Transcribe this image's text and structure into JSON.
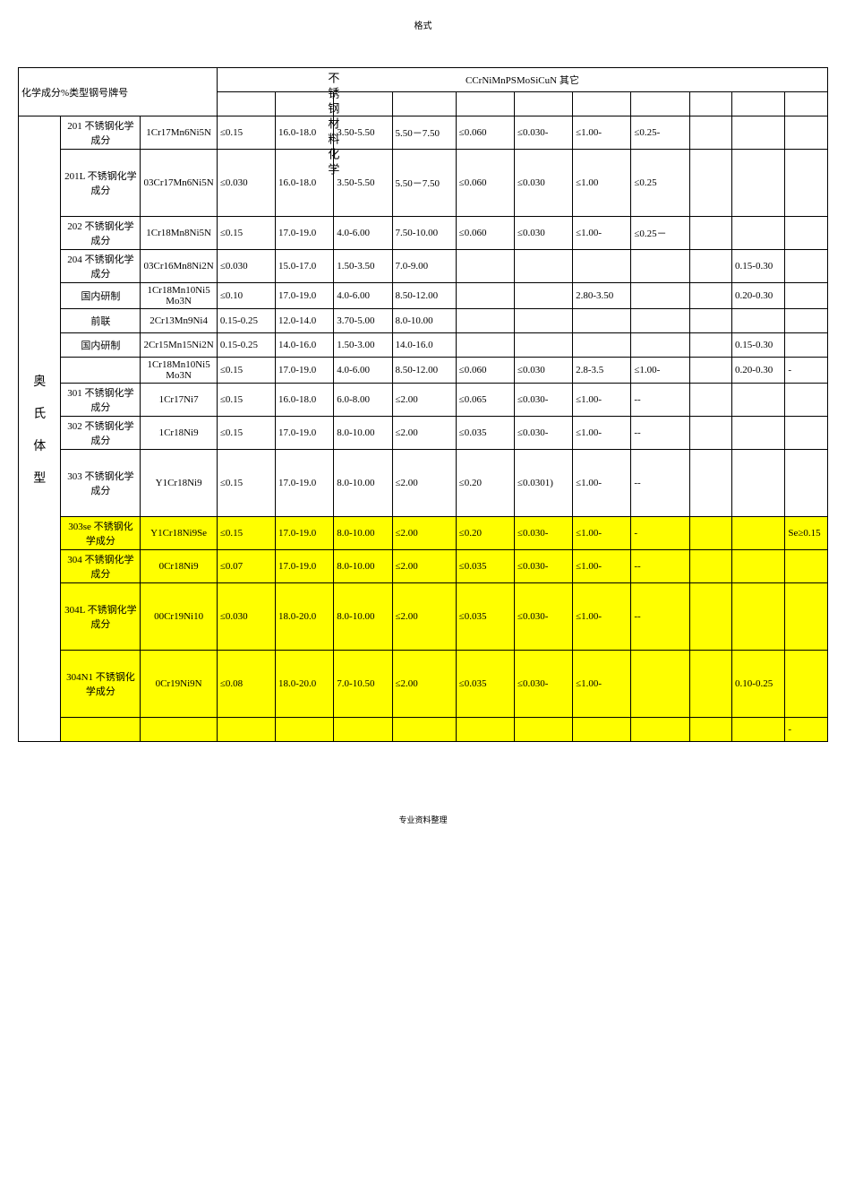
{
  "top_label": "格式",
  "vertical_title": "不锈钢材料化学",
  "footer": "专业资料整理",
  "header": {
    "row_label": "化学成分%类型钢号牌号",
    "cols_joined": "CCrNiMnPSMoSiCuN 其它"
  },
  "category": "奥氏体型",
  "colors": {
    "highlight": "#ffff00",
    "border": "#000000",
    "bg": "#ffffff"
  },
  "rows": [
    {
      "type": "201 不锈钢化学成分",
      "grade": "1Cr17Mn6Ni5N",
      "C": "≤0.15",
      "Cr": "16.0-18.0",
      "Ni": "3.50-5.50",
      "Mn": "5.50－7.50",
      "P": "≤0.060",
      "S": "≤0.030-",
      "Mo": "≤1.00-",
      "Si": "≤0.25-",
      "Cu": "",
      "N": "",
      "Other": "",
      "tall": false,
      "hl": false
    },
    {
      "type": "201L 不锈钢化学成分",
      "grade": "03Cr17Mn6Ni5N",
      "C": "≤0.030",
      "Cr": "16.0-18.0",
      "Ni": "3.50-5.50",
      "Mn": "5.50－7.50",
      "P": "≤0.060",
      "S": "≤0.030",
      "Mo": "≤1.00",
      "Si": "≤0.25",
      "Cu": "",
      "N": "",
      "Other": "",
      "tall": true,
      "hl": false
    },
    {
      "type": "202 不锈钢化学成分",
      "grade": "1Cr18Mn8Ni5N",
      "C": "≤0.15",
      "Cr": "17.0-19.0",
      "Ni": "4.0-6.00",
      "Mn": "7.50-10.00",
      "P": "≤0.060",
      "S": "≤0.030",
      "Mo": "≤1.00-",
      "Si": "≤0.25－",
      "Cu": "",
      "N": "",
      "Other": "",
      "tall": false,
      "hl": false
    },
    {
      "type": "204 不锈钢化学成分",
      "grade": "03Cr16Mn8Ni2N",
      "C": "≤0.030",
      "Cr": "15.0-17.0",
      "Ni": "1.50-3.50",
      "Mn": "7.0-9.00",
      "P": "",
      "S": "",
      "Mo": "",
      "Si": "",
      "Cu": "",
      "N": "0.15-0.30",
      "Other": "",
      "tall": false,
      "hl": false
    },
    {
      "type": "国内研制",
      "grade": "1Cr18Mn10Ni5Mo3N",
      "C": "≤0.10",
      "Cr": "17.0-19.0",
      "Ni": "4.0-6.00",
      "Mn": "8.50-12.00",
      "P": "",
      "S": "",
      "Mo": "2.80-3.50",
      "Si": "",
      "Cu": "",
      "N": "0.20-0.30",
      "Other": "",
      "tall": false,
      "hl": false
    },
    {
      "type": "前联",
      "grade": "2Cr13Mn9Ni4",
      "C": "0.15-0.25",
      "Cr": "12.0-14.0",
      "Ni": "3.70-5.00",
      "Mn": "8.0-10.00",
      "P": "",
      "S": "",
      "Mo": "",
      "Si": "",
      "Cu": "",
      "N": "",
      "Other": "",
      "tall": false,
      "hl": false
    },
    {
      "type": "国内研制",
      "grade": "2Cr15Mn15Ni2N",
      "C": "0.15-0.25",
      "Cr": "14.0-16.0",
      "Ni": "1.50-3.00",
      "Mn": "14.0-16.0",
      "P": "",
      "S": "",
      "Mo": "",
      "Si": "",
      "Cu": "",
      "N": "0.15-0.30",
      "Other": "",
      "tall": false,
      "hl": false
    },
    {
      "type": "",
      "grade": "1Cr18Mn10Ni5Mo3N",
      "C": "≤0.15",
      "Cr": "17.0-19.0",
      "Ni": "4.0-6.00",
      "Mn": "8.50-12.00",
      "P": "≤0.060",
      "S": "≤0.030",
      "Mo": "2.8-3.5",
      "Si": "≤1.00-",
      "Cu": "",
      "N": "0.20-0.30",
      "Other": "-",
      "tall": false,
      "hl": false
    },
    {
      "type": "301 不锈钢化学成分",
      "grade": "1Cr17Ni7",
      "C": "≤0.15",
      "Cr": "16.0-18.0",
      "Ni": "6.0-8.00",
      "Mn": "≤2.00",
      "P": "≤0.065",
      "S": "≤0.030-",
      "Mo": "≤1.00-",
      "Si": "--",
      "Cu": "",
      "N": "",
      "Other": "",
      "tall": false,
      "hl": false
    },
    {
      "type": "302 不锈钢化学成分",
      "grade": "1Cr18Ni9",
      "C": "≤0.15",
      "Cr": "17.0-19.0",
      "Ni": "8.0-10.00",
      "Mn": "≤2.00",
      "P": "≤0.035",
      "S": "≤0.030-",
      "Mo": "≤1.00-",
      "Si": "--",
      "Cu": "",
      "N": "",
      "Other": "",
      "tall": false,
      "hl": false
    },
    {
      "type": "303 不锈钢化学成分",
      "grade": "Y1Cr18Ni9",
      "C": "≤0.15",
      "Cr": "17.0-19.0",
      "Ni": "8.0-10.00",
      "Mn": "≤2.00",
      "P": "≤0.20",
      "S": "≤0.0301)",
      "Mo": "≤1.00-",
      "Si": "--",
      "Cu": "",
      "N": "",
      "Other": "",
      "tall": true,
      "hl": false
    },
    {
      "type": "303se 不锈钢化学成分",
      "grade": "Y1Cr18Ni9Se",
      "C": "≤0.15",
      "Cr": "17.0-19.0",
      "Ni": "8.0-10.00",
      "Mn": "≤2.00",
      "P": "≤0.20",
      "S": "≤0.030-",
      "Mo": "≤1.00-",
      "Si": "-",
      "Cu": "",
      "N": "",
      "Other": "Se≥0.15",
      "tall": false,
      "hl": true
    },
    {
      "type": "304 不锈钢化学成分",
      "grade": "0Cr18Ni9",
      "C": "≤0.07",
      "Cr": "17.0-19.0",
      "Ni": "8.0-10.00",
      "Mn": "≤2.00",
      "P": "≤0.035",
      "S": "≤0.030-",
      "Mo": "≤1.00-",
      "Si": "--",
      "Cu": "",
      "N": "",
      "Other": "",
      "tall": false,
      "hl": true
    },
    {
      "type": "304L 不锈钢化学成分",
      "grade": "00Cr19Ni10",
      "C": "≤0.030",
      "Cr": "18.0-20.0",
      "Ni": "8.0-10.00",
      "Mn": "≤2.00",
      "P": "≤0.035",
      "S": "≤0.030-",
      "Mo": "≤1.00-",
      "Si": "--",
      "Cu": "",
      "N": "",
      "Other": "",
      "tall": true,
      "hl": true
    },
    {
      "type": "304N1 不锈钢化学成分",
      "grade": "0Cr19Ni9N",
      "C": "≤0.08",
      "Cr": "18.0-20.0",
      "Ni": "7.0-10.50",
      "Mn": "≤2.00",
      "P": "≤0.035",
      "S": "≤0.030-",
      "Mo": "≤1.00-",
      "Si": "",
      "Cu": "",
      "N": "0.10-0.25",
      "Other": "",
      "tall": true,
      "hl": true
    },
    {
      "type": "",
      "grade": "",
      "C": "",
      "Cr": "",
      "Ni": "",
      "Mn": "",
      "P": "",
      "S": "",
      "Mo": "",
      "Si": "",
      "Cu": "",
      "N": "",
      "Other": "-",
      "tall": false,
      "hl": true
    }
  ]
}
